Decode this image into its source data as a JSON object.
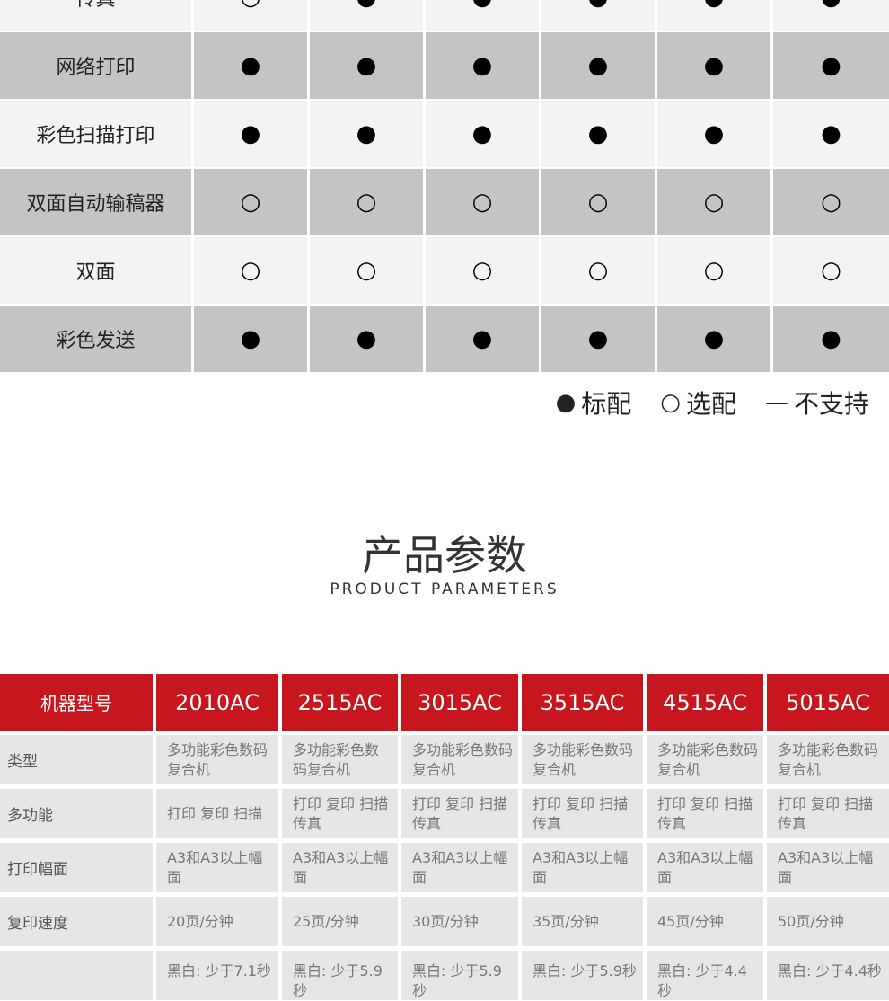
{
  "feature_table": {
    "rows": [
      {
        "label": "传真",
        "marks": [
          "○",
          "●",
          "●",
          "●",
          "●",
          "●"
        ]
      },
      {
        "label": "网络打印",
        "marks": [
          "●",
          "●",
          "●",
          "●",
          "●",
          "●"
        ]
      },
      {
        "label": "彩色扫描打印",
        "marks": [
          "●",
          "●",
          "●",
          "●",
          "●",
          "●"
        ]
      },
      {
        "label": "双面自动输稿器",
        "marks": [
          "○",
          "○",
          "○",
          "○",
          "○",
          "○"
        ]
      },
      {
        "label": "双面",
        "marks": [
          "○",
          "○",
          "○",
          "○",
          "○",
          "○"
        ]
      },
      {
        "label": "彩色发送",
        "marks": [
          "●",
          "●",
          "●",
          "●",
          "●",
          "●"
        ]
      }
    ]
  },
  "legend": [
    {
      "symbol": "●",
      "label": "标配"
    },
    {
      "symbol": "○",
      "label": "选配"
    },
    {
      "symbol": "—",
      "label": "不支持"
    }
  ],
  "section": {
    "title": "产品参数",
    "subtitle": "PRODUCT PARAMETERS"
  },
  "spec_table": {
    "header": [
      "机器型号",
      "2010AC",
      "2515AC",
      "3015AC",
      "3515AC",
      "4515AC",
      "5015AC"
    ],
    "rows": [
      {
        "label": "类型",
        "cells": [
          "多功能彩色数码复合机",
          "多功能彩色数码复合机",
          "多功能彩色数码复合机",
          "多功能彩色数码复合机",
          "多功能彩色数码复合机",
          "多功能彩色数码复合机"
        ]
      },
      {
        "label": "多功能",
        "cells": [
          "打印 复印 扫描",
          "打印 复印 扫描 传真",
          "打印 复印 扫描 传真",
          "打印 复印 扫描 传真",
          "打印 复印 扫描 传真",
          "打印 复印 扫描 传真"
        ]
      },
      {
        "label": "打印幅面",
        "cells": [
          "A3和A3以上幅面",
          "A3和A3以上幅面",
          "A3和A3以上幅面",
          "A3和A3以上幅面",
          "A3和A3以上幅面",
          "A3和A3以上幅面"
        ]
      },
      {
        "label": "复印速度",
        "cells": [
          "20页/分钟",
          "25页/分钟",
          "30页/分钟",
          "35页/分钟",
          "45页/分钟",
          "50页/分钟"
        ]
      },
      {
        "cells": [
          "黑白: 少于7.1秒",
          "黑白: 少于5.9秒",
          "黑白: 少于5.9秒",
          "黑白: 少于5.9秒",
          "黑白: 少于4.4秒",
          "黑白: 少于4.4秒"
        ]
      }
    ]
  }
}
